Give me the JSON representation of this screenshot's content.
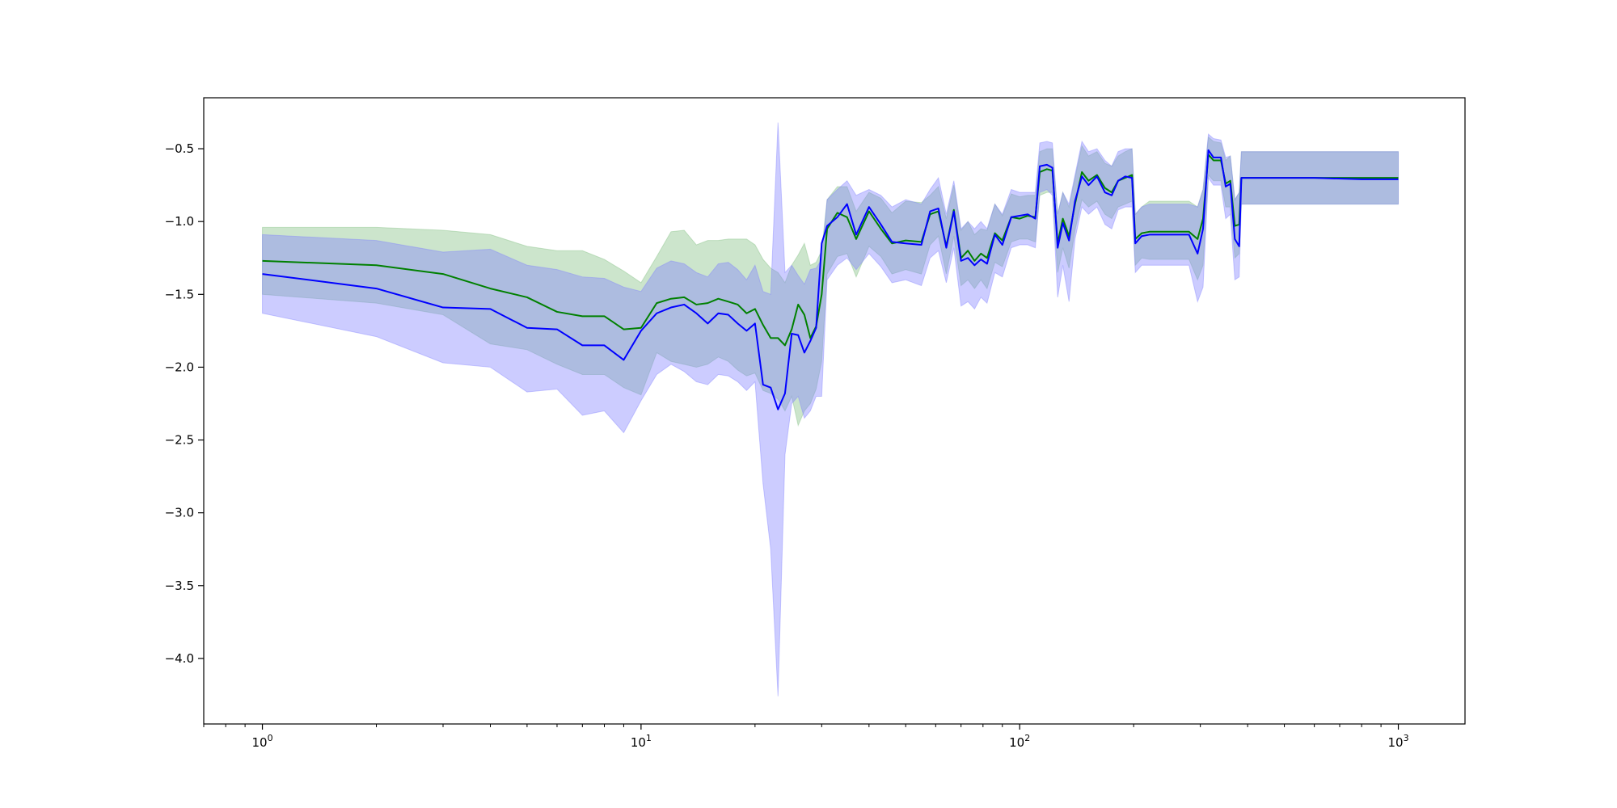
{
  "chart_data": {
    "type": "line",
    "title": "",
    "xlabel": "",
    "ylabel": "",
    "xscale": "log",
    "xlim": [
      0.7,
      1500
    ],
    "ylim": [
      -4.45,
      -0.15
    ],
    "grid": false,
    "legend": "none",
    "x_ticks": [
      {
        "value": 1,
        "base": "10",
        "exp": "0"
      },
      {
        "value": 10,
        "base": "10",
        "exp": "1"
      },
      {
        "value": 100,
        "base": "10",
        "exp": "2"
      },
      {
        "value": 1000,
        "base": "10",
        "exp": "3"
      }
    ],
    "y_ticks": [
      {
        "value": -0.5,
        "label": "−0.5"
      },
      {
        "value": -1.0,
        "label": "−1.0"
      },
      {
        "value": -1.5,
        "label": "−1.5"
      },
      {
        "value": -2.0,
        "label": "−2.0"
      },
      {
        "value": -2.5,
        "label": "−2.5"
      },
      {
        "value": -3.0,
        "label": "−3.0"
      },
      {
        "value": -3.5,
        "label": "−3.5"
      },
      {
        "value": -4.0,
        "label": "−4.0"
      }
    ],
    "series": [
      {
        "color": "#008000",
        "band_color": "#7fbf7f",
        "band_opacity": 0.4,
        "points": [
          [
            1,
            -1.27,
            -1.04,
            -1.5
          ],
          [
            2,
            -1.3,
            -1.04,
            -1.56
          ],
          [
            3,
            -1.36,
            -1.06,
            -1.64
          ],
          [
            4,
            -1.46,
            -1.09,
            -1.84
          ],
          [
            5,
            -1.52,
            -1.17,
            -1.88
          ],
          [
            6,
            -1.62,
            -1.2,
            -1.98
          ],
          [
            7,
            -1.65,
            -1.2,
            -2.05
          ],
          [
            8,
            -1.65,
            -1.26,
            -2.05
          ],
          [
            9,
            -1.74,
            -1.34,
            -2.14
          ],
          [
            10,
            -1.73,
            -1.42,
            -2.19
          ],
          [
            11,
            -1.56,
            -1.24,
            -1.9
          ],
          [
            12,
            -1.53,
            -1.07,
            -1.96
          ],
          [
            13,
            -1.52,
            -1.06,
            -1.98
          ],
          [
            14,
            -1.57,
            -1.16,
            -2.0
          ],
          [
            15,
            -1.56,
            -1.13,
            -1.98
          ],
          [
            16,
            -1.53,
            -1.13,
            -1.93
          ],
          [
            17,
            -1.55,
            -1.12,
            -1.96
          ],
          [
            18,
            -1.57,
            -1.12,
            -2.02
          ],
          [
            19,
            -1.63,
            -1.12,
            -2.06
          ],
          [
            20,
            -1.6,
            -1.16,
            -2.04
          ],
          [
            21,
            -1.71,
            -1.26,
            -2.16
          ],
          [
            22,
            -1.8,
            -1.32,
            -2.18
          ],
          [
            23,
            -1.8,
            -1.35,
            -2.22
          ],
          [
            24,
            -1.85,
            -1.42,
            -2.3
          ],
          [
            25,
            -1.74,
            -1.3,
            -2.2
          ],
          [
            26,
            -1.57,
            -1.23,
            -2.4
          ],
          [
            27,
            -1.64,
            -1.15,
            -2.3
          ],
          [
            28,
            -1.8,
            -1.3,
            -2.25
          ],
          [
            29,
            -1.72,
            -1.28,
            -2.15
          ],
          [
            30,
            -1.5,
            -1.2,
            -1.96
          ],
          [
            31,
            -1.05,
            -0.85,
            -1.36
          ],
          [
            33,
            -0.94,
            -0.76,
            -1.24
          ],
          [
            35,
            -0.97,
            -0.76,
            -1.22
          ],
          [
            37,
            -1.12,
            -0.93,
            -1.38
          ],
          [
            40,
            -0.93,
            -0.8,
            -1.17
          ],
          [
            43,
            -1.05,
            -0.84,
            -1.24
          ],
          [
            46,
            -1.15,
            -0.94,
            -1.36
          ],
          [
            50,
            -1.13,
            -0.86,
            -1.33
          ],
          [
            55,
            -1.14,
            -0.87,
            -1.36
          ],
          [
            58,
            -0.95,
            -0.82,
            -1.16
          ],
          [
            61,
            -0.93,
            -0.76,
            -1.1
          ],
          [
            64,
            -1.17,
            -0.98,
            -1.36
          ],
          [
            67,
            -0.92,
            -0.75,
            -1.1
          ],
          [
            70,
            -1.25,
            -1.06,
            -1.44
          ],
          [
            73,
            -1.2,
            -1.0,
            -1.4
          ],
          [
            76,
            -1.27,
            -1.09,
            -1.46
          ],
          [
            79,
            -1.22,
            -1.05,
            -1.4
          ],
          [
            82,
            -1.25,
            -1.06,
            -1.46
          ],
          [
            86,
            -1.08,
            -0.88,
            -1.28
          ],
          [
            90,
            -1.13,
            -0.96,
            -1.31
          ],
          [
            95,
            -0.97,
            -0.81,
            -1.14
          ],
          [
            100,
            -0.98,
            -0.83,
            -1.12
          ],
          [
            105,
            -0.96,
            -0.82,
            -1.12
          ],
          [
            110,
            -0.97,
            -0.82,
            -1.14
          ],
          [
            113,
            -0.66,
            -0.52,
            -0.82
          ],
          [
            118,
            -0.64,
            -0.5,
            -0.8
          ],
          [
            122,
            -0.65,
            -0.5,
            -0.8
          ],
          [
            126,
            -1.15,
            -0.95,
            -1.35
          ],
          [
            130,
            -0.98,
            -0.8,
            -1.18
          ],
          [
            135,
            -1.1,
            -0.9,
            -1.32
          ],
          [
            140,
            -0.88,
            -0.7,
            -1.06
          ],
          [
            146,
            -0.66,
            -0.48,
            -0.85
          ],
          [
            152,
            -0.72,
            -0.55,
            -0.9
          ],
          [
            160,
            -0.68,
            -0.52,
            -0.86
          ],
          [
            168,
            -0.77,
            -0.6,
            -0.95
          ],
          [
            175,
            -0.8,
            -0.62,
            -0.98
          ],
          [
            182,
            -0.72,
            -0.55,
            -0.9
          ],
          [
            190,
            -0.7,
            -0.52,
            -0.88
          ],
          [
            198,
            -0.68,
            -0.5,
            -0.86
          ],
          [
            202,
            -1.12,
            -0.95,
            -1.3
          ],
          [
            210,
            -1.08,
            -0.9,
            -1.25
          ],
          [
            220,
            -1.07,
            -0.86,
            -1.26
          ],
          [
            240,
            -1.07,
            -0.86,
            -1.26
          ],
          [
            260,
            -1.07,
            -0.86,
            -1.26
          ],
          [
            280,
            -1.07,
            -0.86,
            -1.26
          ],
          [
            295,
            -1.12,
            -0.9,
            -1.4
          ],
          [
            305,
            -0.98,
            -0.78,
            -1.3
          ],
          [
            315,
            -0.54,
            -0.42,
            -0.68
          ],
          [
            325,
            -0.58,
            -0.45,
            -0.72
          ],
          [
            340,
            -0.58,
            -0.46,
            -0.72
          ],
          [
            350,
            -0.74,
            -0.58,
            -0.9
          ],
          [
            360,
            -0.72,
            -0.55,
            -0.9
          ],
          [
            370,
            -1.03,
            -0.85,
            -1.25
          ],
          [
            380,
            -1.02,
            -0.8,
            -1.22
          ],
          [
            385,
            -0.7,
            -0.52,
            -0.88
          ],
          [
            450,
            -0.7,
            -0.52,
            -0.88
          ],
          [
            600,
            -0.7,
            -0.52,
            -0.88
          ],
          [
            800,
            -0.7,
            -0.52,
            -0.88
          ],
          [
            1000,
            -0.7,
            -0.52,
            -0.88
          ]
        ]
      },
      {
        "color": "#0000ff",
        "band_color": "#8080ff",
        "band_opacity": 0.4,
        "points": [
          [
            1,
            -1.36,
            -1.09,
            -1.63
          ],
          [
            2,
            -1.46,
            -1.13,
            -1.79
          ],
          [
            3,
            -1.59,
            -1.21,
            -1.97
          ],
          [
            4,
            -1.6,
            -1.19,
            -2.0
          ],
          [
            5,
            -1.73,
            -1.3,
            -2.17
          ],
          [
            6,
            -1.74,
            -1.33,
            -2.15
          ],
          [
            7,
            -1.85,
            -1.38,
            -2.33
          ],
          [
            8,
            -1.85,
            -1.39,
            -2.3
          ],
          [
            9,
            -1.95,
            -1.45,
            -2.45
          ],
          [
            10,
            -1.75,
            -1.48,
            -2.23
          ],
          [
            11,
            -1.63,
            -1.32,
            -2.05
          ],
          [
            12,
            -1.59,
            -1.27,
            -1.98
          ],
          [
            13,
            -1.57,
            -1.29,
            -2.03
          ],
          [
            14,
            -1.63,
            -1.35,
            -2.1
          ],
          [
            15,
            -1.7,
            -1.38,
            -2.12
          ],
          [
            16,
            -1.63,
            -1.29,
            -2.05
          ],
          [
            17,
            -1.64,
            -1.28,
            -2.06
          ],
          [
            18,
            -1.7,
            -1.33,
            -2.1
          ],
          [
            19,
            -1.75,
            -1.4,
            -2.16
          ],
          [
            20,
            -1.7,
            -1.3,
            -2.1
          ],
          [
            21,
            -2.12,
            -1.48,
            -2.8
          ],
          [
            22,
            -2.14,
            -1.5,
            -3.25
          ],
          [
            23,
            -2.29,
            -0.32,
            -4.26
          ],
          [
            24,
            -2.18,
            -1.35,
            -2.6
          ],
          [
            25,
            -1.77,
            -1.3,
            -2.25
          ],
          [
            26,
            -1.78,
            -1.37,
            -2.2
          ],
          [
            27,
            -1.9,
            -1.43,
            -2.35
          ],
          [
            28,
            -1.82,
            -1.33,
            -2.3
          ],
          [
            29,
            -1.73,
            -1.32,
            -2.2
          ],
          [
            30,
            -1.15,
            -1.26,
            -2.2
          ],
          [
            31,
            -1.03,
            -0.85,
            -1.4
          ],
          [
            33,
            -0.97,
            -0.78,
            -1.3
          ],
          [
            35,
            -0.88,
            -0.72,
            -1.25
          ],
          [
            37,
            -1.09,
            -0.82,
            -1.33
          ],
          [
            40,
            -0.9,
            -0.78,
            -1.22
          ],
          [
            43,
            -1.02,
            -0.82,
            -1.31
          ],
          [
            46,
            -1.14,
            -0.9,
            -1.42
          ],
          [
            50,
            -1.15,
            -0.85,
            -1.4
          ],
          [
            55,
            -1.16,
            -0.88,
            -1.44
          ],
          [
            58,
            -0.93,
            -0.78,
            -1.25
          ],
          [
            61,
            -0.91,
            -0.7,
            -1.2
          ],
          [
            64,
            -1.18,
            -0.95,
            -1.42
          ],
          [
            67,
            -0.93,
            -0.72,
            -1.18
          ],
          [
            70,
            -1.27,
            -1.05,
            -1.58
          ],
          [
            73,
            -1.25,
            -1.0,
            -1.55
          ],
          [
            76,
            -1.3,
            -1.05,
            -1.6
          ],
          [
            79,
            -1.26,
            -1.0,
            -1.52
          ],
          [
            82,
            -1.29,
            -1.05,
            -1.56
          ],
          [
            86,
            -1.09,
            -0.88,
            -1.35
          ],
          [
            90,
            -1.16,
            -0.95,
            -1.38
          ],
          [
            95,
            -0.97,
            -0.78,
            -1.18
          ],
          [
            100,
            -0.96,
            -0.8,
            -1.16
          ],
          [
            105,
            -0.95,
            -0.8,
            -1.16
          ],
          [
            110,
            -0.98,
            -0.8,
            -1.18
          ],
          [
            113,
            -0.62,
            -0.46,
            -0.8
          ],
          [
            118,
            -0.61,
            -0.45,
            -0.78
          ],
          [
            122,
            -0.63,
            -0.46,
            -0.82
          ],
          [
            126,
            -1.18,
            -0.95,
            -1.52
          ],
          [
            130,
            -1.01,
            -0.8,
            -1.3
          ],
          [
            135,
            -1.13,
            -0.88,
            -1.55
          ],
          [
            140,
            -0.86,
            -0.68,
            -1.12
          ],
          [
            146,
            -0.69,
            -0.45,
            -0.9
          ],
          [
            152,
            -0.75,
            -0.52,
            -0.95
          ],
          [
            160,
            -0.69,
            -0.5,
            -0.9
          ],
          [
            168,
            -0.8,
            -0.58,
            -1.02
          ],
          [
            175,
            -0.82,
            -0.62,
            -1.05
          ],
          [
            182,
            -0.72,
            -0.52,
            -0.92
          ],
          [
            190,
            -0.69,
            -0.5,
            -0.9
          ],
          [
            198,
            -0.7,
            -0.5,
            -0.9
          ],
          [
            202,
            -1.15,
            -0.95,
            -1.35
          ],
          [
            210,
            -1.1,
            -0.9,
            -1.3
          ],
          [
            220,
            -1.09,
            -0.88,
            -1.3
          ],
          [
            240,
            -1.09,
            -0.88,
            -1.3
          ],
          [
            260,
            -1.09,
            -0.88,
            -1.3
          ],
          [
            280,
            -1.09,
            -0.88,
            -1.3
          ],
          [
            295,
            -1.22,
            -0.9,
            -1.55
          ],
          [
            305,
            -1.05,
            -0.78,
            -1.45
          ],
          [
            315,
            -0.51,
            -0.4,
            -0.7
          ],
          [
            325,
            -0.56,
            -0.43,
            -0.75
          ],
          [
            340,
            -0.56,
            -0.44,
            -0.75
          ],
          [
            350,
            -0.76,
            -0.56,
            -0.98
          ],
          [
            360,
            -0.74,
            -0.55,
            -0.95
          ],
          [
            370,
            -1.12,
            -0.85,
            -1.4
          ],
          [
            380,
            -1.17,
            -0.8,
            -1.38
          ],
          [
            385,
            -0.7,
            -0.52,
            -0.88
          ],
          [
            450,
            -0.7,
            -0.52,
            -0.88
          ],
          [
            600,
            -0.7,
            -0.52,
            -0.88
          ],
          [
            800,
            -0.71,
            -0.52,
            -0.88
          ],
          [
            1000,
            -0.71,
            -0.52,
            -0.88
          ]
        ]
      }
    ]
  }
}
